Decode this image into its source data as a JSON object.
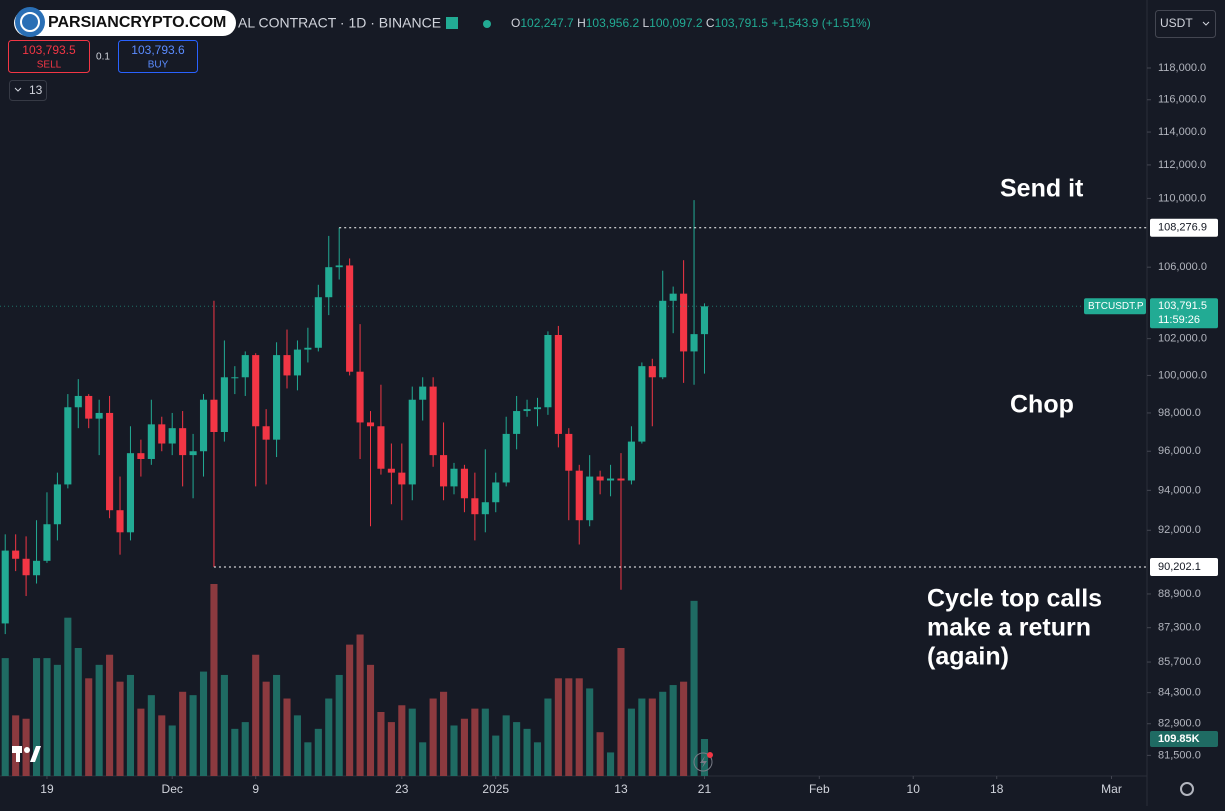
{
  "header": {
    "watermark": "PARSIANCRYPTO.COM",
    "symbol": "AL CONTRACT · 1D · BINANCE",
    "ohlc": [
      {
        "key": "O",
        "value": "102,247.7"
      },
      {
        "key": "H",
        "value": "103,956.2"
      },
      {
        "key": "L",
        "value": "100,097.2"
      },
      {
        "key": "C",
        "value": "103,791.5"
      }
    ],
    "change": "+1,543.9 (+1.51%)",
    "sell": {
      "price": "103,793.5",
      "label": "SELL"
    },
    "qty": "0.1",
    "buy": {
      "price": "103,793.6",
      "label": "BUY"
    },
    "indicators": "13",
    "currency": "USDT"
  },
  "chart_data": {
    "type": "candlestick",
    "log_scale": true,
    "grid": false,
    "up_color": "#22ab94",
    "down_color": "#f23645",
    "volume_up_color": "#1f6b63",
    "volume_down_color": "#8c3a3f",
    "ylim": [
      80600,
      122400
    ],
    "xlim": [
      -0.5,
      109.4
    ],
    "yticks": [
      {
        "value": 118000,
        "label": "118,000.0"
      },
      {
        "value": 116000,
        "label": "116,000.0"
      },
      {
        "value": 114000,
        "label": "114,000.0"
      },
      {
        "value": 112000,
        "label": "112,000.0"
      },
      {
        "value": 110000,
        "label": "110,000.0"
      },
      {
        "value": 106000,
        "label": "106,000.0"
      },
      {
        "value": 102000,
        "label": "102,000.0"
      },
      {
        "value": 100000,
        "label": "100,000.0"
      },
      {
        "value": 98000,
        "label": "98,000.0"
      },
      {
        "value": 96000,
        "label": "96,000.0"
      },
      {
        "value": 94000,
        "label": "94,000.0"
      },
      {
        "value": 92000,
        "label": "92,000.0"
      },
      {
        "value": 88900,
        "label": "88,900.0"
      },
      {
        "value": 87300,
        "label": "87,300.0"
      },
      {
        "value": 85700,
        "label": "85,700.0"
      },
      {
        "value": 84300,
        "label": "84,300.0"
      },
      {
        "value": 82900,
        "label": "82,900.0"
      },
      {
        "value": 81500,
        "label": "81,500.0"
      }
    ],
    "xticks": [
      {
        "value": 4,
        "label": "19"
      },
      {
        "value": 16,
        "label": "Dec"
      },
      {
        "value": 24,
        "label": "9"
      },
      {
        "value": 38,
        "label": "23"
      },
      {
        "value": 47,
        "label": "2025"
      },
      {
        "value": 59,
        "label": "13"
      },
      {
        "value": 67,
        "label": "21"
      },
      {
        "value": 78,
        "label": "Feb"
      },
      {
        "value": 87,
        "label": "10"
      },
      {
        "value": 95,
        "label": "18"
      },
      {
        "value": 106,
        "label": "Mar"
      }
    ],
    "open": [
      87500,
      91000,
      90600,
      89800,
      90500,
      92300,
      94300,
      98300,
      98900,
      97700,
      98000,
      93000,
      91900,
      95900,
      95600,
      97400,
      96400,
      97200,
      95800,
      96000,
      98700,
      97000,
      99900,
      99900,
      101100,
      97300,
      96600,
      101100,
      100000,
      101400,
      101500,
      104300,
      106000,
      106100,
      100200,
      97500,
      97300,
      95100,
      94900,
      94300,
      98700,
      99400,
      95800,
      94200,
      95100,
      93600,
      92800,
      93400,
      94400,
      96900,
      98100,
      98200,
      98300,
      102200,
      96900,
      95000,
      92500,
      94700,
      94500,
      94600,
      94500,
      96500,
      100500,
      99900,
      104100,
      104500,
      101300,
      102247.7
    ],
    "high": [
      91800,
      91800,
      91700,
      92500,
      93900,
      94900,
      99000,
      99800,
      99000,
      98700,
      98900,
      94700,
      97300,
      96600,
      98700,
      97800,
      98000,
      98100,
      96900,
      99000,
      104100,
      101900,
      100500,
      101300,
      101200,
      98200,
      101800,
      102500,
      101900,
      102600,
      105000,
      107800,
      108276.9,
      106500,
      102800,
      98100,
      99500,
      96400,
      96400,
      99400,
      99900,
      99900,
      97500,
      95400,
      95300,
      94900,
      96100,
      94900,
      97800,
      98900,
      98700,
      98800,
      102400,
      102700,
      97200,
      95300,
      95800,
      95000,
      95300,
      95900,
      97300,
      100700,
      100900,
      105800,
      104900,
      106400,
      109900,
      103956.2
    ],
    "low": [
      87000,
      90000,
      88800,
      89400,
      90400,
      91500,
      94100,
      97200,
      97200,
      95800,
      92600,
      90800,
      91500,
      94700,
      95300,
      96000,
      95800,
      94200,
      93600,
      94700,
      90202.1,
      96500,
      99000,
      98900,
      94200,
      94300,
      95700,
      99300,
      99200,
      100700,
      101300,
      103300,
      105300,
      100000,
      95600,
      92200,
      94800,
      93300,
      92500,
      93500,
      97600,
      95200,
      93500,
      93800,
      92900,
      91500,
      91900,
      92900,
      94200,
      96100,
      97800,
      97300,
      97900,
      96200,
      92500,
      91300,
      92200,
      93800,
      93700,
      89100,
      94300,
      96400,
      97300,
      99800,
      102300,
      99600,
      99500,
      100097.2
    ],
    "close": [
      91000,
      90600,
      89800,
      90500,
      92300,
      94300,
      98300,
      98900,
      97700,
      98000,
      93000,
      91900,
      95900,
      95600,
      97400,
      96400,
      97200,
      95800,
      96000,
      98700,
      97000,
      99900,
      99900,
      101100,
      97300,
      96600,
      101100,
      100000,
      101400,
      101500,
      104300,
      106000,
      106100,
      100200,
      97500,
      97300,
      95100,
      94900,
      94300,
      98700,
      99400,
      95800,
      94200,
      95100,
      93600,
      92800,
      93400,
      94400,
      96900,
      98100,
      98200,
      98300,
      102200,
      96900,
      95000,
      92500,
      94700,
      94500,
      94600,
      94500,
      96500,
      100500,
      99900,
      104100,
      104500,
      101300,
      102247.7,
      103791.5
    ],
    "volume": [
      350,
      180,
      170,
      350,
      350,
      330,
      470,
      380,
      290,
      330,
      360,
      280,
      300,
      200,
      240,
      180,
      150,
      250,
      240,
      310,
      570,
      300,
      140,
      160,
      360,
      280,
      300,
      230,
      180,
      100,
      140,
      230,
      300,
      390,
      420,
      330,
      190,
      160,
      210,
      200,
      100,
      230,
      250,
      150,
      170,
      200,
      200,
      120,
      180,
      160,
      140,
      100,
      230,
      290,
      290,
      290,
      260,
      130,
      70,
      380,
      200,
      230,
      230,
      250,
      270,
      280,
      520,
      109.85
    ],
    "volume_last_label": "109.85K",
    "levels": [
      {
        "value": 108276.9,
        "label": "108,276.9"
      },
      {
        "value": 90202.1,
        "label": "90,202.1"
      }
    ],
    "last_price": {
      "symbol": "BTCUSDT.P",
      "label": "103,791.5",
      "countdown": "11:59:26"
    },
    "annotations": [
      [
        "Send it"
      ],
      [
        "Chop"
      ],
      [
        "Cycle top calls",
        "make a return",
        "(again)"
      ]
    ]
  }
}
